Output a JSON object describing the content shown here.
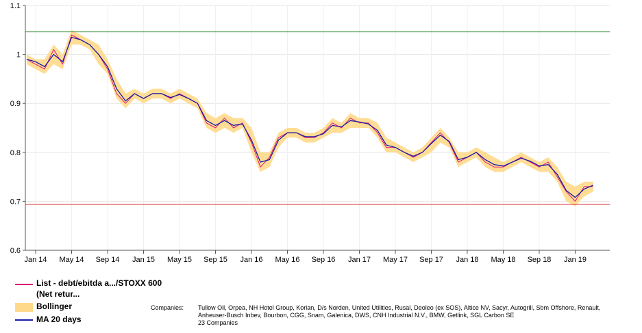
{
  "chart_data": {
    "type": "line",
    "x_ticks": [
      "Jan 14",
      "May 14",
      "Sep 14",
      "Jan 15",
      "May 15",
      "Sep 15",
      "Jan 16",
      "May 16",
      "Sep 16",
      "Jan 17",
      "May 17",
      "Sep 17",
      "Jan 18",
      "May 18",
      "Sep 18",
      "Jan 19"
    ],
    "y_ticks": [
      "0.6",
      "0.7",
      "0.8",
      "0.9",
      "1",
      "1.1"
    ],
    "ylim": [
      0.6,
      1.1
    ],
    "grid": true,
    "reference_lines": [
      {
        "value": 1.046,
        "color": "#2e8b2e"
      },
      {
        "value": 0.694,
        "color": "#d42020"
      }
    ],
    "series": [
      {
        "name": "List - debt/ebitda a.../STOXX 600 (Net retur...",
        "color": "#e0187a",
        "x": [
          "2013-12-01",
          "2014-01-01",
          "2014-02-01",
          "2014-03-01",
          "2014-04-01",
          "2014-05-01",
          "2014-06-01",
          "2014-07-01",
          "2014-08-01",
          "2014-09-01",
          "2014-10-01",
          "2014-11-01",
          "2014-12-01",
          "2015-01-01",
          "2015-02-01",
          "2015-03-01",
          "2015-04-01",
          "2015-05-01",
          "2015-06-01",
          "2015-07-01",
          "2015-08-01",
          "2015-09-01",
          "2015-10-01",
          "2015-11-01",
          "2015-12-01",
          "2016-01-01",
          "2016-02-01",
          "2016-03-01",
          "2016-04-01",
          "2016-05-01",
          "2016-06-01",
          "2016-07-01",
          "2016-08-01",
          "2016-09-01",
          "2016-10-01",
          "2016-11-01",
          "2016-12-01",
          "2017-01-01",
          "2017-02-01",
          "2017-03-01",
          "2017-04-01",
          "2017-05-01",
          "2017-06-01",
          "2017-07-01",
          "2017-08-01",
          "2017-09-01",
          "2017-10-01",
          "2017-11-01",
          "2017-12-01",
          "2018-01-01",
          "2018-02-01",
          "2018-03-01",
          "2018-04-01",
          "2018-05-01",
          "2018-06-01",
          "2018-07-01",
          "2018-08-01",
          "2018-09-01",
          "2018-10-01",
          "2018-11-01",
          "2018-12-01",
          "2019-01-01",
          "2019-02-01",
          "2019-03-01"
        ],
        "values": [
          0.99,
          0.98,
          0.97,
          1.01,
          0.98,
          1.04,
          1.03,
          1.02,
          1.0,
          0.97,
          0.92,
          0.9,
          0.92,
          0.91,
          0.92,
          0.92,
          0.91,
          0.92,
          0.91,
          0.9,
          0.86,
          0.85,
          0.87,
          0.85,
          0.86,
          0.82,
          0.77,
          0.79,
          0.83,
          0.84,
          0.84,
          0.83,
          0.83,
          0.84,
          0.86,
          0.85,
          0.87,
          0.86,
          0.86,
          0.84,
          0.81,
          0.81,
          0.8,
          0.79,
          0.8,
          0.82,
          0.84,
          0.82,
          0.78,
          0.79,
          0.8,
          0.78,
          0.77,
          0.77,
          0.78,
          0.79,
          0.78,
          0.77,
          0.78,
          0.75,
          0.72,
          0.7,
          0.73,
          0.73
        ]
      },
      {
        "name": "MA 20 days",
        "color": "#1a1aa6",
        "x": [
          "2013-12-01",
          "2014-01-01",
          "2014-02-01",
          "2014-03-01",
          "2014-04-01",
          "2014-05-01",
          "2014-06-01",
          "2014-07-01",
          "2014-08-01",
          "2014-09-01",
          "2014-10-01",
          "2014-11-01",
          "2014-12-01",
          "2015-01-01",
          "2015-02-01",
          "2015-03-01",
          "2015-04-01",
          "2015-05-01",
          "2015-06-01",
          "2015-07-01",
          "2015-08-01",
          "2015-09-01",
          "2015-10-01",
          "2015-11-01",
          "2015-12-01",
          "2016-01-01",
          "2016-02-01",
          "2016-03-01",
          "2016-04-01",
          "2016-05-01",
          "2016-06-01",
          "2016-07-01",
          "2016-08-01",
          "2016-09-01",
          "2016-10-01",
          "2016-11-01",
          "2016-12-01",
          "2017-01-01",
          "2017-02-01",
          "2017-03-01",
          "2017-04-01",
          "2017-05-01",
          "2017-06-01",
          "2017-07-01",
          "2017-08-01",
          "2017-09-01",
          "2017-10-01",
          "2017-11-01",
          "2017-12-01",
          "2018-01-01",
          "2018-02-01",
          "2018-03-01",
          "2018-04-01",
          "2018-05-01",
          "2018-06-01",
          "2018-07-01",
          "2018-08-01",
          "2018-09-01",
          "2018-10-01",
          "2018-11-01",
          "2018-12-01",
          "2019-01-01",
          "2019-02-01",
          "2019-03-01"
        ],
        "values": [
          0.99,
          0.985,
          0.975,
          1.0,
          0.985,
          1.035,
          1.03,
          1.02,
          1.0,
          0.975,
          0.93,
          0.905,
          0.92,
          0.91,
          0.92,
          0.92,
          0.912,
          0.918,
          0.91,
          0.9,
          0.865,
          0.855,
          0.865,
          0.855,
          0.858,
          0.825,
          0.78,
          0.785,
          0.825,
          0.84,
          0.84,
          0.832,
          0.832,
          0.838,
          0.855,
          0.852,
          0.865,
          0.862,
          0.858,
          0.845,
          0.815,
          0.81,
          0.8,
          0.792,
          0.8,
          0.818,
          0.835,
          0.822,
          0.785,
          0.79,
          0.8,
          0.785,
          0.775,
          0.772,
          0.78,
          0.788,
          0.782,
          0.772,
          0.775,
          0.755,
          0.722,
          0.708,
          0.725,
          0.733
        ]
      }
    ],
    "bollinger": {
      "name": "Bollinger",
      "color": "#ffd98a",
      "upper": [
        1.0,
        0.99,
        0.99,
        1.02,
        1.0,
        1.05,
        1.04,
        1.03,
        1.02,
        0.99,
        0.95,
        0.92,
        0.93,
        0.92,
        0.93,
        0.93,
        0.92,
        0.93,
        0.92,
        0.91,
        0.88,
        0.87,
        0.88,
        0.87,
        0.87,
        0.85,
        0.8,
        0.8,
        0.84,
        0.85,
        0.85,
        0.84,
        0.84,
        0.85,
        0.87,
        0.86,
        0.88,
        0.87,
        0.87,
        0.86,
        0.83,
        0.82,
        0.81,
        0.8,
        0.81,
        0.83,
        0.85,
        0.83,
        0.8,
        0.8,
        0.81,
        0.8,
        0.79,
        0.78,
        0.79,
        0.8,
        0.79,
        0.78,
        0.79,
        0.77,
        0.74,
        0.73,
        0.74,
        0.74
      ],
      "lower": [
        0.98,
        0.97,
        0.96,
        0.98,
        0.97,
        1.02,
        1.02,
        1.01,
        0.98,
        0.96,
        0.91,
        0.89,
        0.91,
        0.9,
        0.91,
        0.91,
        0.9,
        0.91,
        0.9,
        0.89,
        0.85,
        0.84,
        0.85,
        0.84,
        0.85,
        0.8,
        0.76,
        0.77,
        0.81,
        0.83,
        0.83,
        0.82,
        0.82,
        0.83,
        0.84,
        0.84,
        0.85,
        0.85,
        0.85,
        0.83,
        0.8,
        0.8,
        0.79,
        0.78,
        0.79,
        0.8,
        0.82,
        0.81,
        0.77,
        0.78,
        0.79,
        0.77,
        0.76,
        0.76,
        0.77,
        0.78,
        0.77,
        0.76,
        0.76,
        0.74,
        0.7,
        0.69,
        0.71,
        0.72
      ]
    }
  },
  "legend": {
    "series1_label": "List - debt/ebitda a.../STOXX 600 (Net retur...",
    "bollinger_label": "Bollinger",
    "ma_label": "MA 20 days"
  },
  "companies": {
    "label": "Companies:",
    "text": "Tullow Oil, Orpea, NH Hotel Group, Korian, D/s Norden, United Utilities, Rusal, Deoleo (ex SOS), Altice NV, Sacyr, Autogrill, Sbm Offshore, Renault, Anheuser-Busch Inbev, Bourbon, CGG, Snam, Galenica, DWS, CNH Industrial N.V., BMW, Getlink, SGL Carbon SE",
    "count": "23 Companies"
  }
}
